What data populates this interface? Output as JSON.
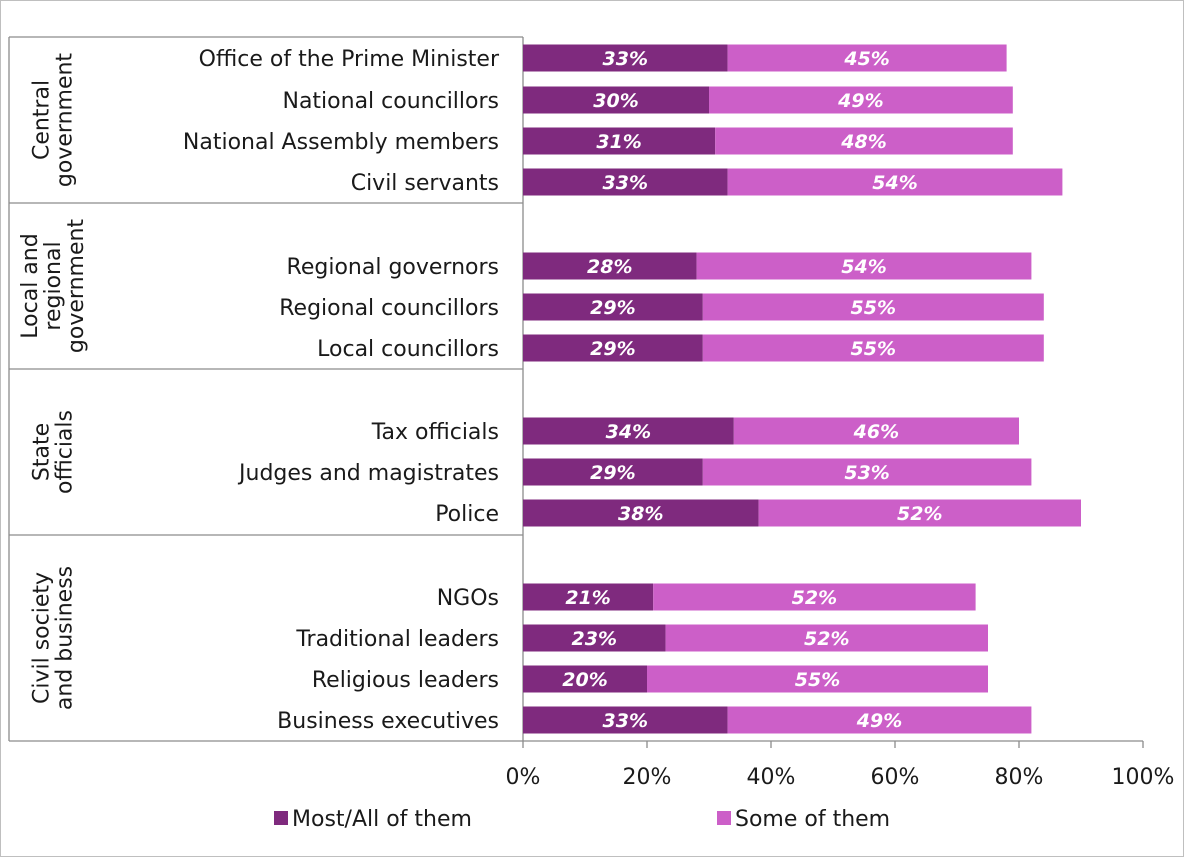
{
  "chart_data": {
    "type": "bar",
    "orientation": "horizontal",
    "stacked": true,
    "xlim": [
      0,
      100
    ],
    "x_ticks": [
      "0%",
      "20%",
      "40%",
      "60%",
      "80%",
      "100%"
    ],
    "grid": false,
    "legend_position": "bottom",
    "colors": {
      "Most/All of them": "#7f2a7e",
      "Some of them": "#cc5fc8"
    },
    "groups": [
      {
        "label": "Central government",
        "categories": [
          "Office of the Prime Minister",
          "National councillors",
          "National Assembly members",
          "Civil servants"
        ]
      },
      {
        "label": "Local and regional government",
        "categories": [
          "Regional governors",
          "Regional councillors",
          "Local councillors"
        ]
      },
      {
        "label": "State officials",
        "categories": [
          "Tax officials",
          "Judges and magistrates",
          "Police"
        ]
      },
      {
        "label": "Civil society and business",
        "categories": [
          "NGOs",
          "Traditional leaders",
          "Religious leaders",
          "Business executives"
        ]
      }
    ],
    "categories": [
      "Office of the Prime Minister",
      "National councillors",
      "National Assembly members",
      "Civil servants",
      "Regional governors",
      "Regional councillors",
      "Local councillors",
      "Tax officials",
      "Judges and magistrates",
      "Police",
      "NGOs",
      "Traditional leaders",
      "Religious leaders",
      "Business executives"
    ],
    "series": [
      {
        "name": "Most/All of them",
        "values": [
          33,
          30,
          31,
          33,
          28,
          29,
          29,
          34,
          29,
          38,
          21,
          23,
          20,
          33
        ],
        "labels": [
          "33%",
          "30%",
          "31%",
          "33%",
          "28%",
          "29%",
          "29%",
          "34%",
          "29%",
          "38%",
          "21%",
          "23%",
          "20%",
          "33%"
        ]
      },
      {
        "name": "Some of them",
        "values": [
          45,
          49,
          48,
          54,
          54,
          55,
          55,
          46,
          53,
          52,
          52,
          52,
          55,
          49
        ],
        "labels": [
          "45%",
          "49%",
          "48%",
          "54%",
          "54%",
          "55%",
          "55%",
          "46%",
          "53%",
          "52%",
          "52%",
          "52%",
          "55%",
          "49%"
        ]
      }
    ]
  }
}
